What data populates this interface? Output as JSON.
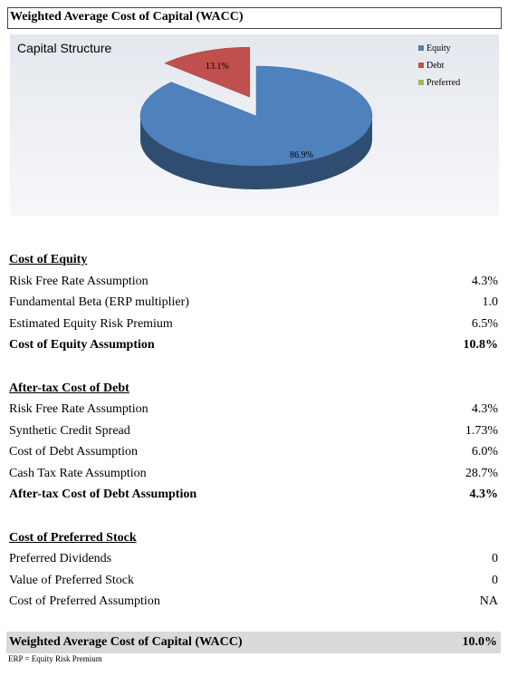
{
  "header": {
    "title": "Weighted Average Cost of Capital (WACC)"
  },
  "chart": {
    "type": "pie",
    "title": "Capital Structure",
    "categories": [
      "Equity",
      "Debt",
      "Preferred"
    ],
    "values": [
      86.9,
      13.1,
      0
    ],
    "value_labels": [
      "86.9%",
      "13.1%",
      null
    ],
    "colors": [
      "#4f81bd",
      "#c0504d",
      "#9bbb59"
    ],
    "exploded": "Debt"
  },
  "sections": [
    {
      "title": "Cost of Equity",
      "rows": [
        [
          "Risk Free Rate Assumption",
          "4.3%"
        ],
        [
          "Fundamental Beta (ERP multiplier)",
          "1.0"
        ],
        [
          "Estimated Equity Risk Premium",
          "6.5%"
        ]
      ],
      "total": [
        "Cost of Equity Assumption",
        "10.8%"
      ]
    },
    {
      "title": "After-tax Cost of Debt",
      "rows": [
        [
          "Risk Free Rate Assumption",
          "4.3%"
        ],
        [
          "Synthetic Credit Spread",
          "1.73%"
        ],
        [
          "Cost of Debt Assumption",
          "6.0%"
        ],
        [
          "Cash Tax Rate Assumption",
          "28.7%"
        ]
      ],
      "total": [
        "After-tax Cost of Debt Assumption",
        "4.3%"
      ]
    },
    {
      "title": "Cost of Preferred Stock",
      "rows": [
        [
          "Preferred Dividends",
          "0"
        ],
        [
          "Value of Preferred Stock",
          "0"
        ],
        [
          "Cost of Preferred Assumption",
          "NA"
        ]
      ]
    }
  ],
  "result": [
    "Weighted Average Cost of Capital (WACC)",
    "10.0%"
  ],
  "footnote": "ERP = Equity Risk Premium"
}
